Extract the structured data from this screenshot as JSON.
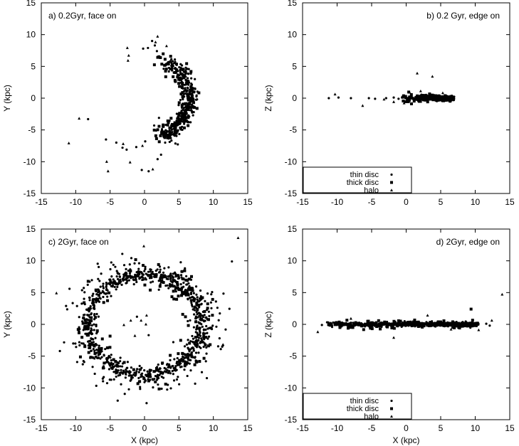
{
  "chart_data": [
    {
      "type": "scatter",
      "title": "a) 0.2Gyr, face on",
      "xlabel": "",
      "ylabel": "Y (kpc)",
      "xlim": [
        -15,
        15
      ],
      "ylim": [
        -15,
        15
      ],
      "xticks": [
        "-15",
        "-10",
        "-5",
        "0",
        "5",
        "10",
        "15"
      ],
      "yticks": [
        "-15",
        "-10",
        "-5",
        "0",
        "5",
        "10",
        "15"
      ],
      "title_anchor": "top-left",
      "legend": null,
      "series": [
        {
          "marker": "circle",
          "gen": {
            "kind": "arc",
            "cx": 0,
            "cy": 0,
            "r": 6.6,
            "rsd": 0.6,
            "a0": -65,
            "a1": 60,
            "n": 330,
            "seed": 11
          }
        },
        {
          "marker": "square",
          "gen": {
            "kind": "arc",
            "cx": 0,
            "cy": 0,
            "r": 6.2,
            "rsd": 0.9,
            "a0": -75,
            "a1": 75,
            "n": 110,
            "seed": 12
          }
        },
        {
          "marker": "triangle",
          "points": [
            [
              -11,
              -7.1
            ],
            [
              -9.5,
              -3.2
            ],
            [
              -5.5,
              -10
            ],
            [
              -5.3,
              -11.5
            ],
            [
              -2.5,
              7.9
            ],
            [
              -2.3,
              6.7
            ],
            [
              -2.4,
              5.9
            ],
            [
              -2.1,
              -10.1
            ],
            [
              1.9,
              9.7
            ],
            [
              1.6,
              8.8
            ],
            [
              -0.3,
              -7.5
            ],
            [
              -3.1,
              -7.2
            ],
            [
              1.2,
              -11.2
            ],
            [
              3.2,
              8.2
            ]
          ]
        },
        {
          "marker": "circle",
          "points": [
            [
              -8.2,
              -3.3
            ],
            [
              -5.6,
              -6.5
            ],
            [
              -4.1,
              -7
            ],
            [
              -3.2,
              -7.8
            ],
            [
              -2.6,
              -8.1
            ],
            [
              -1.2,
              -7.7
            ],
            [
              -0.4,
              -11.3
            ],
            [
              0.6,
              -11.5
            ],
            [
              1.1,
              9
            ],
            [
              1.5,
              8.3
            ],
            [
              0.5,
              7.9
            ],
            [
              -0.2,
              7.8
            ],
            [
              1.8,
              7.4
            ],
            [
              1.9,
              -9.6
            ],
            [
              2.4,
              -8.9
            ],
            [
              0.1,
              -6.8
            ],
            [
              1.4,
              -4.3
            ],
            [
              2.1,
              -3.1
            ],
            [
              1.7,
              -5.1
            ],
            [
              3.0,
              -7.0
            ],
            [
              2.8,
              -6.1
            ]
          ]
        }
      ]
    },
    {
      "type": "scatter",
      "title": "b) 0.2 Gyr, edge on",
      "xlabel": "",
      "ylabel": "Z (kpc)",
      "xlim": [
        -15,
        15
      ],
      "ylim": [
        -15,
        15
      ],
      "xticks": [
        "-15",
        "-10",
        "-5",
        "0",
        "5",
        "10",
        "15"
      ],
      "yticks": [
        "-15",
        "-10",
        "-5",
        "0",
        "5",
        "10",
        "15"
      ],
      "title_anchor": "top-right",
      "legend": {
        "position": "bottom-left",
        "entries": [
          {
            "label": "thin disc",
            "marker": "circle"
          },
          {
            "label": "thick disc",
            "marker": "square"
          },
          {
            "label": "halo",
            "marker": "triangle"
          }
        ]
      },
      "series": [
        {
          "marker": "circle",
          "gen": {
            "kind": "strip",
            "x0": 1.5,
            "x1": 7,
            "ysd": 0.18,
            "n": 360,
            "seed": 21
          }
        },
        {
          "marker": "circle",
          "points": [
            [
              -11.2,
              0
            ],
            [
              -9.8,
              0.1
            ],
            [
              -8,
              0
            ],
            [
              -5.4,
              0
            ],
            [
              -4.5,
              -0.1
            ],
            [
              -2.9,
              0
            ],
            [
              -1.8,
              0.1
            ],
            [
              -1.1,
              -0.1
            ],
            [
              -0.6,
              0.1
            ],
            [
              -0.1,
              0
            ],
            [
              0.4,
              0
            ],
            [
              0.9,
              0.1
            ]
          ]
        },
        {
          "marker": "square",
          "gen": {
            "kind": "strip",
            "x0": -0.5,
            "x1": 7,
            "ysd": 0.3,
            "n": 80,
            "seed": 22
          }
        },
        {
          "marker": "triangle",
          "points": [
            [
              1.6,
              3.9
            ],
            [
              3.8,
              3.4
            ],
            [
              -10.3,
              0.6
            ],
            [
              -6.3,
              -1.2
            ],
            [
              0.5,
              0.9
            ],
            [
              -1.8,
              -0.6
            ],
            [
              2.1,
              1.1
            ],
            [
              5.3,
              0.8
            ],
            [
              -3.2,
              -0.2
            ],
            [
              -0.3,
              -0.8
            ]
          ]
        }
      ]
    },
    {
      "type": "scatter",
      "title": "c) 2Gyr, face on",
      "xlabel": "X (kpc)",
      "ylabel": "Y (kpc)",
      "xlim": [
        -15,
        15
      ],
      "ylim": [
        -15,
        15
      ],
      "xticks": [
        "-15",
        "-10",
        "-5",
        "0",
        "5",
        "10",
        "15"
      ],
      "yticks": [
        "-15",
        "-10",
        "-5",
        "0",
        "5",
        "10",
        "15"
      ],
      "title_anchor": "top-left",
      "legend": null,
      "series": [
        {
          "marker": "circle",
          "gen": {
            "kind": "ring",
            "cx": 0,
            "cy": 0,
            "rx": 8.2,
            "ry": 7.9,
            "rsd": 0.55,
            "n": 700,
            "seed": 31
          }
        },
        {
          "marker": "circle",
          "gen": {
            "kind": "ring",
            "cx": 0,
            "cy": 0,
            "rx": 9.3,
            "ry": 9.0,
            "rsd": 1.4,
            "n": 260,
            "seed": 32
          }
        },
        {
          "marker": "square",
          "gen": {
            "kind": "ring",
            "cx": 0,
            "cy": 0,
            "rx": 8.3,
            "ry": 8.0,
            "rsd": 1.3,
            "n": 140,
            "seed": 33
          }
        },
        {
          "marker": "circle",
          "points": [
            [
              12.7,
              9.9
            ],
            [
              0.3,
              -12.4
            ],
            [
              -3.9,
              -12
            ],
            [
              10.9,
              -2.2
            ],
            [
              11.4,
              -3.3
            ],
            [
              -11.4,
              2.9
            ],
            [
              -12.3,
              -4.2
            ],
            [
              -10.9,
              5.6
            ],
            [
              -1.1,
              1.2
            ],
            [
              0.6,
              -1.7
            ]
          ]
        },
        {
          "marker": "triangle",
          "points": [
            [
              13.6,
              13.6
            ],
            [
              -0.1,
              12.3
            ],
            [
              -12.8,
              4.9
            ],
            [
              -0.5,
              0.6
            ],
            [
              0.2,
              0.0
            ],
            [
              -1.4,
              -1.8
            ],
            [
              -2.0,
              0.6
            ],
            [
              0.3,
              1.4
            ],
            [
              -3.0,
              -0.1
            ],
            [
              11.4,
              -3.2
            ]
          ]
        }
      ]
    },
    {
      "type": "scatter",
      "title": "d) 2Gyr, edge on",
      "xlabel": "X (kpc)",
      "ylabel": "Z (kpc)",
      "xlim": [
        -15,
        15
      ],
      "ylim": [
        -15,
        15
      ],
      "xticks": [
        "-15",
        "-10",
        "-5",
        "0",
        "5",
        "10",
        "15"
      ],
      "yticks": [
        "-15",
        "-10",
        "-5",
        "0",
        "5",
        "10",
        "15"
      ],
      "title_anchor": "top-right",
      "legend": {
        "position": "bottom-left",
        "entries": [
          {
            "label": "thin disc",
            "marker": "circle"
          },
          {
            "label": "thick disc",
            "marker": "square"
          },
          {
            "label": "halo",
            "marker": "triangle"
          }
        ]
      },
      "series": [
        {
          "marker": "circle",
          "gen": {
            "kind": "strip",
            "x0": -11.5,
            "x1": 10.5,
            "ysd": 0.16,
            "n": 600,
            "seed": 41
          }
        },
        {
          "marker": "square",
          "gen": {
            "kind": "strip",
            "x0": -11,
            "x1": 10,
            "ysd": 0.35,
            "n": 120,
            "seed": 42
          }
        },
        {
          "marker": "circle",
          "points": [
            [
              12.1,
              -0.2
            ],
            [
              11.6,
              0.1
            ],
            [
              -12.2,
              -0.1
            ]
          ]
        },
        {
          "marker": "square",
          "points": [
            [
              9.4,
              2.4
            ]
          ]
        },
        {
          "marker": "triangle",
          "points": [
            [
              13.9,
              4.7
            ],
            [
              -12.8,
              -1.2
            ],
            [
              3.1,
              1.4
            ],
            [
              -1.8,
              -2.1
            ],
            [
              10.5,
              -0.9
            ],
            [
              -8.0,
              0.9
            ],
            [
              6.5,
              -0.8
            ],
            [
              12.4,
              0.6
            ]
          ]
        }
      ]
    }
  ]
}
